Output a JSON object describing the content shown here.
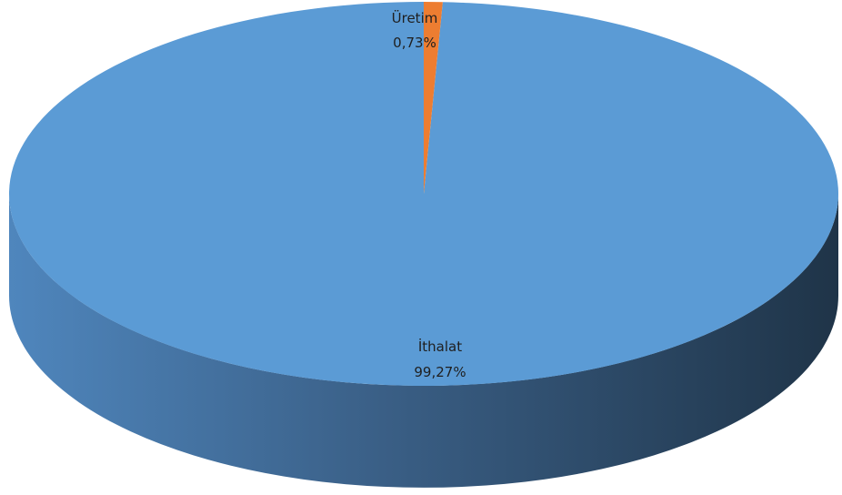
{
  "chart_data": {
    "type": "pie",
    "style": "3d",
    "categories": [
      "İthalat",
      "Üretim"
    ],
    "values": [
      99.27,
      0.73
    ],
    "value_labels": [
      "99,27%",
      "0,73%"
    ],
    "unit": "%",
    "colors": [
      "#5b9bd5",
      "#ed7d31"
    ],
    "side_colors": [
      "#4a7eb5",
      "#c8672a"
    ],
    "title": "",
    "legend": "none"
  }
}
